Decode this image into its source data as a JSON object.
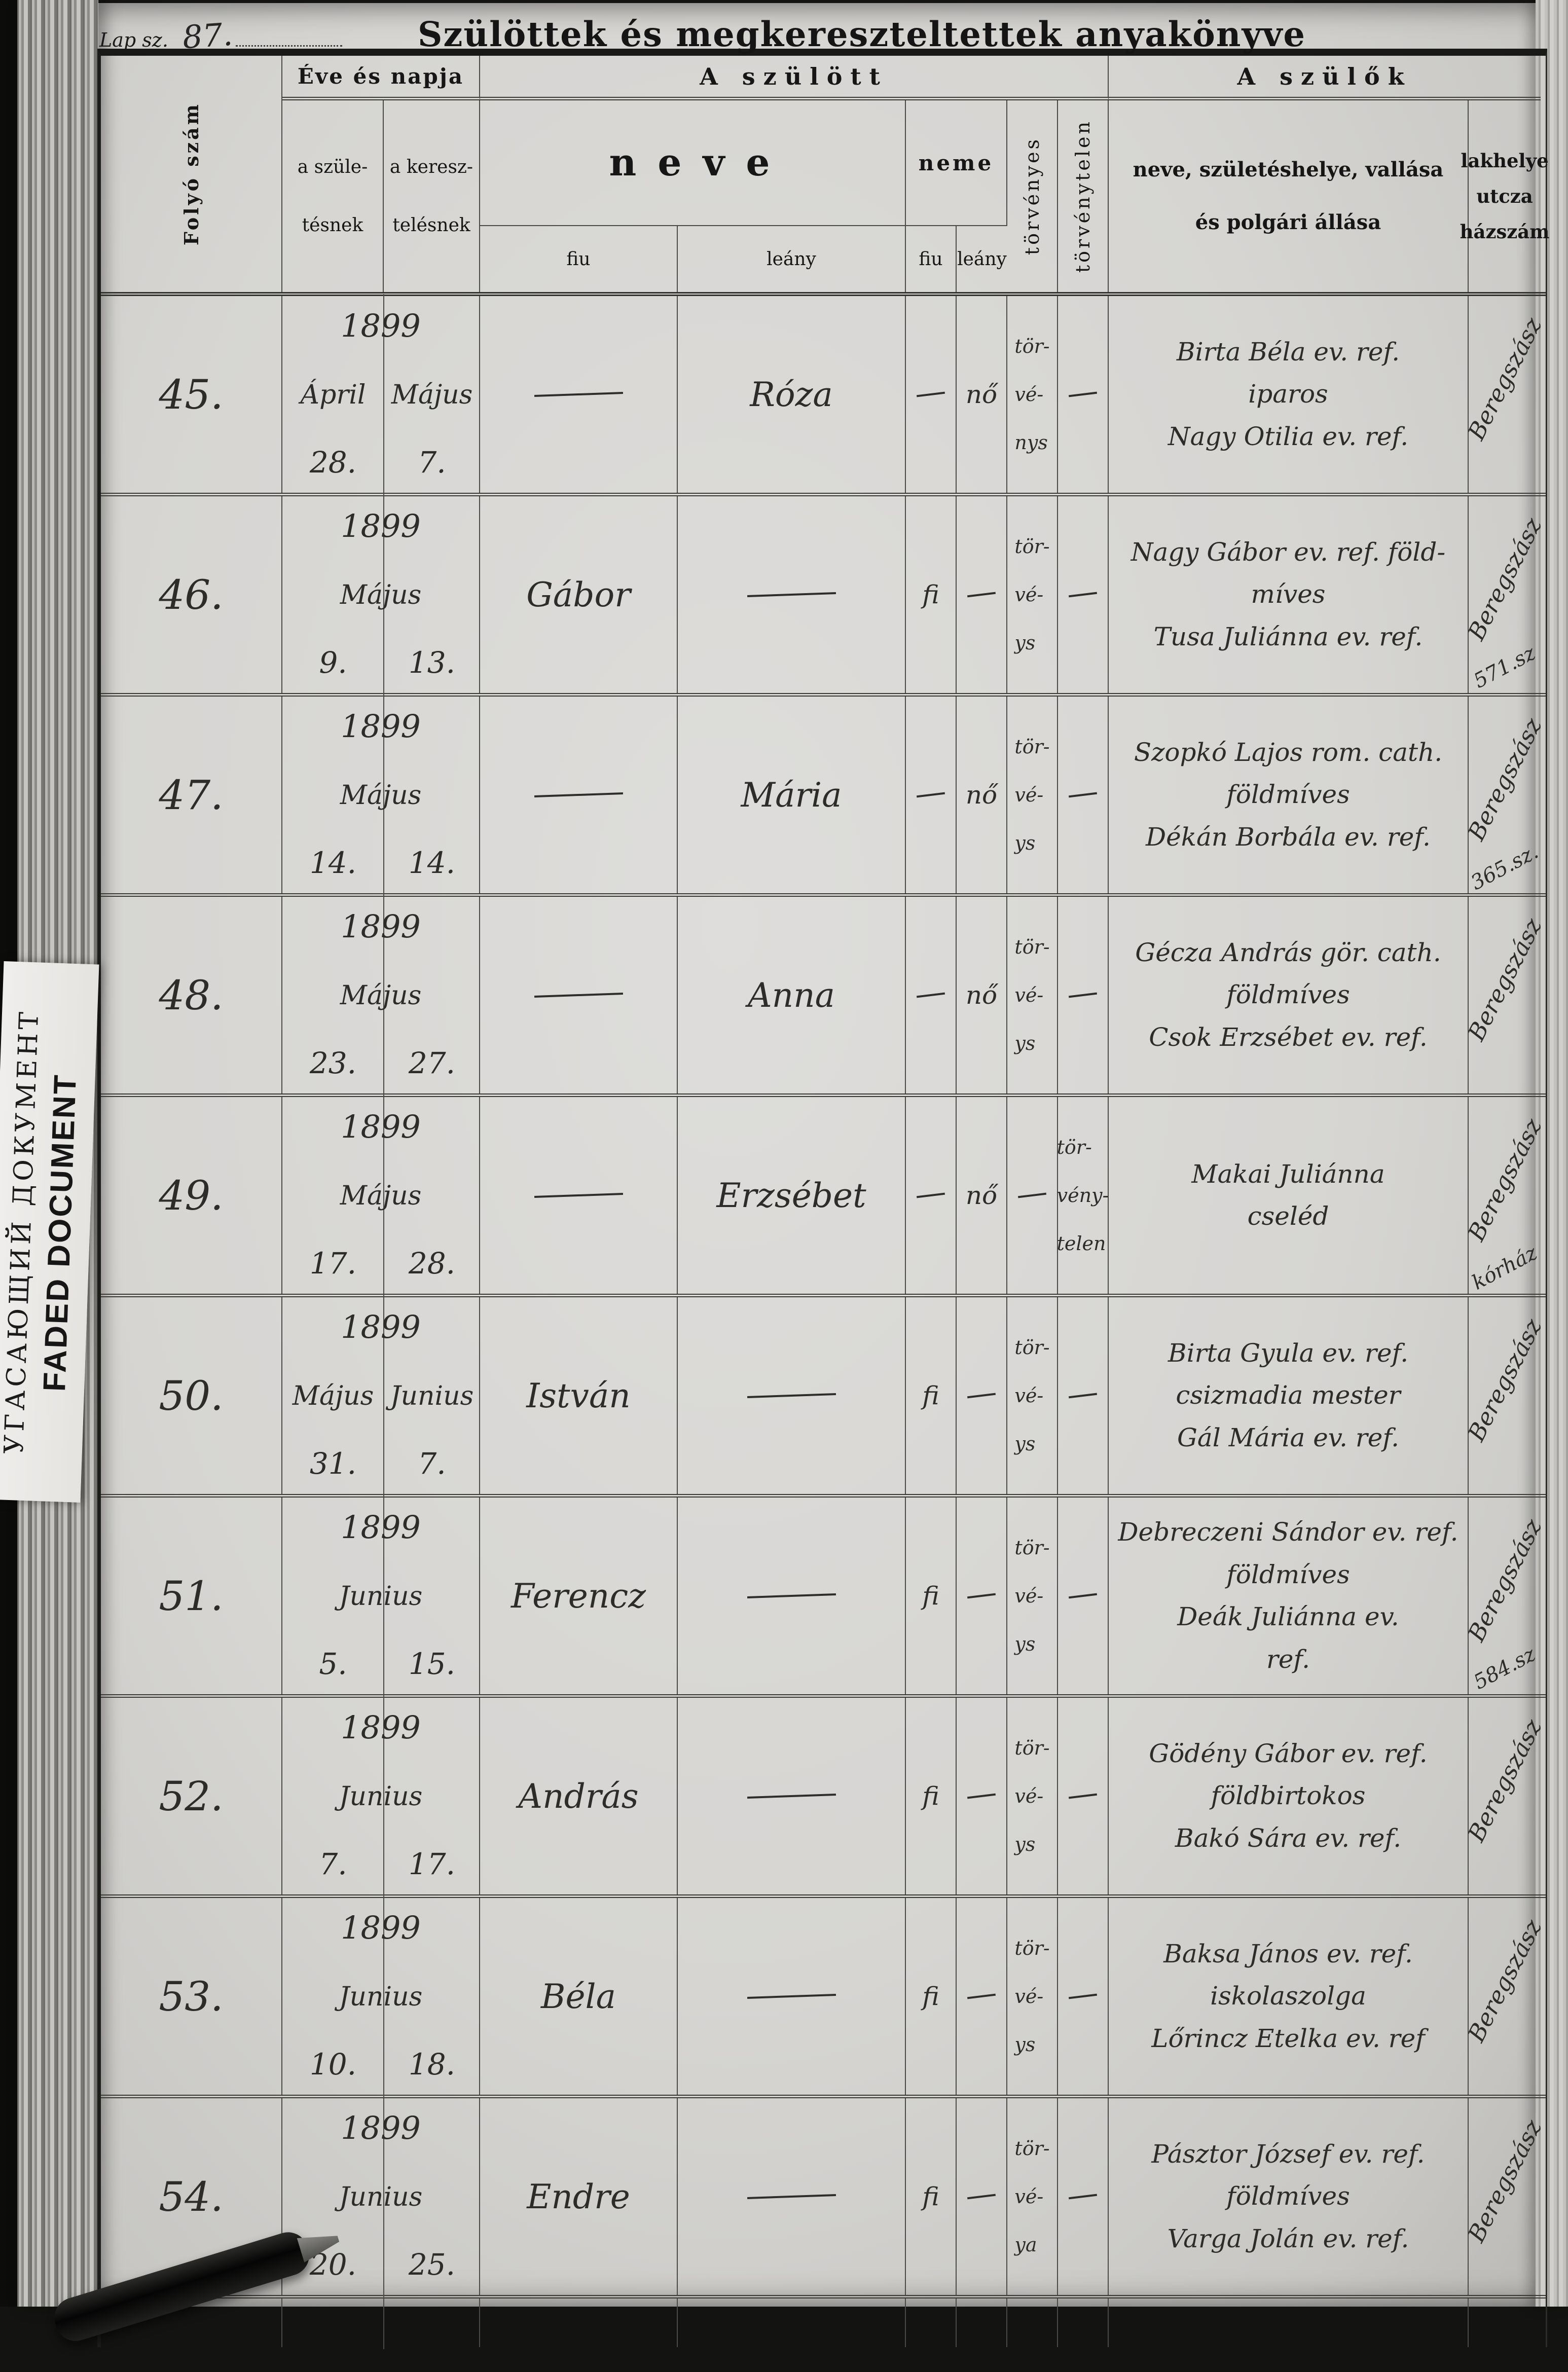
{
  "page": {
    "lap_label": "Lap sz.",
    "lap_number": "87.",
    "title": "Szülöttek és megkereszteltettek anyakönyve"
  },
  "stamp": {
    "line1": "УГАСАЮЩИЙ ДОКУМЕНТ",
    "line2": "FADED DOCUMENT"
  },
  "table": {
    "headers": {
      "folyo_szam": "Folyó szám",
      "eve_es_napja": "Éve és napja",
      "a_szulott": "A szülött",
      "a_szulok": "A szülők",
      "szuletesnek": "a szüle-\ntésnek",
      "keresztelesnek": "a keresz-\ntelésnek",
      "neve": "neve",
      "neme": "neme",
      "neve_fiu": "fiu",
      "neve_leany": "leány",
      "neme_fiu": "fiu",
      "neme_leany": "leány",
      "torvenyes": "törvényes",
      "torvenytelen": "törvénytelen",
      "szulok_reszletek": "neve, születéshelye, vallása\nés polgári állása",
      "lakhelye": "lakhelye\nutcza\nházszám"
    },
    "rows": [
      {
        "szam": "45.",
        "year": "1899",
        "months": [
          "Ápril",
          "Május"
        ],
        "days": [
          "28.",
          "7."
        ],
        "name_fiu": "—",
        "name_leany": "Róza",
        "neme_fiu": "—",
        "neme_leany": "nő",
        "torvenyes": "tör-\nvé-\nnys",
        "torvenytelen": "—",
        "parents": [
          "Birta Béla ev. ref.",
          "iparos",
          "Nagy Otilia ev. ref."
        ],
        "residence": "Beregszász",
        "residence_note": ""
      },
      {
        "szam": "46.",
        "year": "1899",
        "months": [
          "Május"
        ],
        "days": [
          "9.",
          "13."
        ],
        "name_fiu": "Gábor",
        "name_leany": "—",
        "neme_fiu": "fi",
        "neme_leany": "—",
        "torvenyes": "tör-\nvé-\nys",
        "torvenytelen": "—",
        "parents": [
          "Nagy Gábor ev. ref. föld-",
          "míves",
          "Tusa Juliánna ev. ref."
        ],
        "residence": "Beregszász",
        "residence_note": "571.sz"
      },
      {
        "szam": "47.",
        "year": "1899",
        "months": [
          "Május"
        ],
        "days": [
          "14.",
          "14."
        ],
        "name_fiu": "—",
        "name_leany": "Mária",
        "neme_fiu": "—",
        "neme_leany": "nő",
        "torvenyes": "tör-\nvé-\nys",
        "torvenytelen": "—",
        "parents": [
          "Szopkó Lajos rom. cath.",
          "földmíves",
          "Dékán Borbála ev. ref."
        ],
        "residence": "Beregszász",
        "residence_note": "365.sz."
      },
      {
        "szam": "48.",
        "year": "1899",
        "months": [
          "Május"
        ],
        "days": [
          "23.",
          "27."
        ],
        "name_fiu": "—",
        "name_leany": "Anna",
        "neme_fiu": "—",
        "neme_leany": "nő",
        "torvenyes": "tör-\nvé-\nys",
        "torvenytelen": "—",
        "parents": [
          "Gécza András gör. cath.",
          "földmíves",
          "Csok Erzsébet ev. ref."
        ],
        "residence": "Beregszász",
        "residence_note": ""
      },
      {
        "szam": "49.",
        "year": "1899",
        "months": [
          "Május"
        ],
        "days": [
          "17.",
          "28."
        ],
        "name_fiu": "—",
        "name_leany": "Erzsébet",
        "neme_fiu": "—",
        "neme_leany": "nő",
        "torvenyes": "—",
        "torvenytelen": "tör-\nvény-\ntelen",
        "parents": [
          "Makai Juliánna",
          "cseléd"
        ],
        "residence": "Beregszász",
        "residence_note": "kórház"
      },
      {
        "szam": "50.",
        "year": "1899",
        "months": [
          "Május",
          "Junius"
        ],
        "days": [
          "31.",
          "7."
        ],
        "name_fiu": "István",
        "name_leany": "—",
        "neme_fiu": "fi",
        "neme_leany": "—",
        "torvenyes": "tör-\nvé-\nys",
        "torvenytelen": "—",
        "parents": [
          "Birta Gyula ev. ref.",
          "csizmadia mester",
          "Gál Mária ev. ref."
        ],
        "residence": "Beregszász",
        "residence_note": ""
      },
      {
        "szam": "51.",
        "year": "1899",
        "months": [
          "Junius"
        ],
        "days": [
          "5.",
          "15."
        ],
        "name_fiu": "Ferencz",
        "name_leany": "—",
        "neme_fiu": "fi",
        "neme_leany": "—",
        "torvenyes": "tör-\nvé-\nys",
        "torvenytelen": "—",
        "parents": [
          "Debreczeni Sándor ev. ref.",
          "földmíves",
          "Deák Juliánna ev.",
          "ref."
        ],
        "residence": "Beregszász",
        "residence_note": "584.sz"
      },
      {
        "szam": "52.",
        "year": "1899",
        "months": [
          "Junius"
        ],
        "days": [
          "7.",
          "17."
        ],
        "name_fiu": "András",
        "name_leany": "—",
        "neme_fiu": "fi",
        "neme_leany": "—",
        "torvenyes": "tör-\nvé-\nys",
        "torvenytelen": "—",
        "parents": [
          "Gödény Gábor ev. ref.",
          "földbirtokos",
          "Bakó Sára ev. ref."
        ],
        "residence": "Beregszász",
        "residence_note": ""
      },
      {
        "szam": "53.",
        "year": "1899",
        "months": [
          "Junius"
        ],
        "days": [
          "10.",
          "18."
        ],
        "name_fiu": "Béla",
        "name_leany": "—",
        "neme_fiu": "fi",
        "neme_leany": "—",
        "torvenyes": "tör-\nvé-\nys",
        "torvenytelen": "—",
        "parents": [
          "Baksa János ev. ref.",
          "iskolaszolga",
          "Lőrincz Etelka ev. ref"
        ],
        "residence": "Beregszász",
        "residence_note": ""
      },
      {
        "szam": "54.",
        "year": "1899",
        "months": [
          "Junius"
        ],
        "days": [
          "20.",
          "25."
        ],
        "name_fiu": "Endre",
        "name_leany": "—",
        "neme_fiu": "fi",
        "neme_leany": "—",
        "torvenyes": "tör-\nvé-\nya",
        "torvenytelen": "—",
        "parents": [
          "Pásztor József ev. ref.",
          "földmíves",
          "Varga Jolán ev. ref."
        ],
        "residence": "Beregszász",
        "residence_note": ""
      }
    ]
  }
}
